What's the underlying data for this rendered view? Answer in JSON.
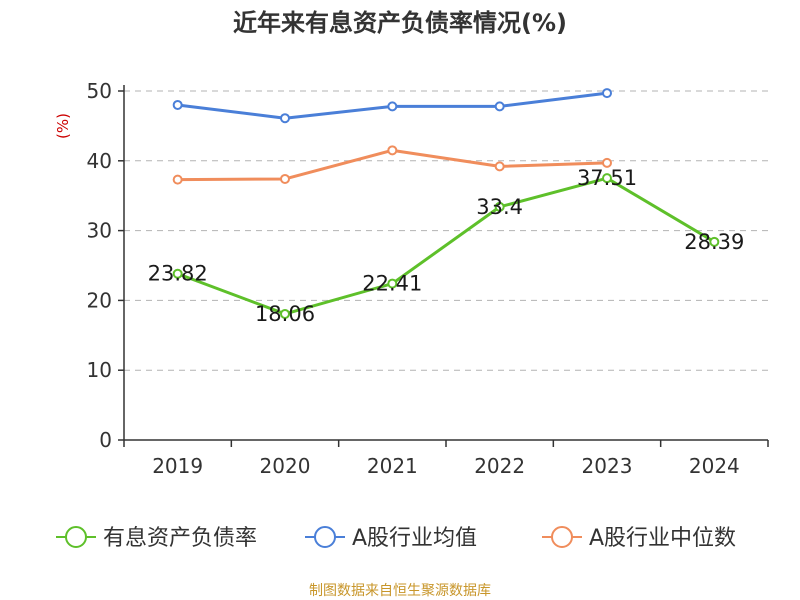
{
  "chart_data": {
    "type": "line",
    "title": "近年来有息资产负债率情况(%)",
    "ylabel": "(%)",
    "xlabel": "",
    "categories": [
      "2019",
      "2020",
      "2021",
      "2022",
      "2023",
      "2024"
    ],
    "ylim": [
      0,
      50
    ],
    "yticks": [
      0,
      10,
      20,
      30,
      40,
      50
    ],
    "grid": true,
    "legend_position": "bottom",
    "series": [
      {
        "name": "有息资产负债率",
        "color": "#5ec02a",
        "values": [
          23.82,
          18.06,
          22.41,
          33.4,
          37.51,
          28.39
        ],
        "labels": [
          "23.82",
          "18.06",
          "22.41",
          "33.4",
          "37.51",
          "28.39"
        ]
      },
      {
        "name": "A股行业均值",
        "color": "#4a7fd8",
        "values": [
          48.0,
          46.1,
          47.8,
          47.8,
          49.7,
          null
        ]
      },
      {
        "name": "A股行业中位数",
        "color": "#f08d5c",
        "values": [
          37.3,
          37.4,
          41.5,
          39.2,
          39.7,
          null
        ]
      }
    ]
  },
  "footer": {
    "source": "制图数据来自恒生聚源数据库"
  }
}
